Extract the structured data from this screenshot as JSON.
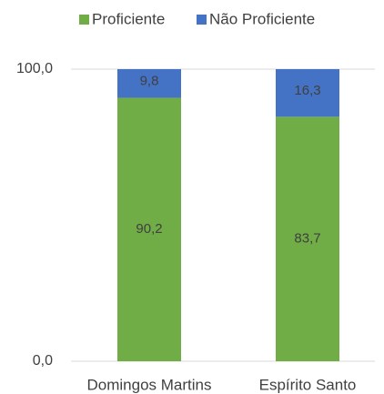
{
  "chart_data": {
    "type": "stacked_bar",
    "categories": [
      "Domingos Martins",
      "Espírito Santo"
    ],
    "series": [
      {
        "name": "Proficiente",
        "color": "#70ad47",
        "values": [
          90.2,
          83.7
        ],
        "value_labels": [
          "90,2",
          "83,7"
        ]
      },
      {
        "name": "Não Proficiente",
        "color": "#4472c4",
        "values": [
          9.8,
          16.3
        ],
        "value_labels": [
          "9,8",
          "16,3"
        ]
      }
    ],
    "ylim": [
      0,
      100
    ],
    "yticks": [
      {
        "value": 0,
        "label": "0,0"
      },
      {
        "value": 100,
        "label": "100,0"
      }
    ],
    "grid": true,
    "legend": "top"
  }
}
